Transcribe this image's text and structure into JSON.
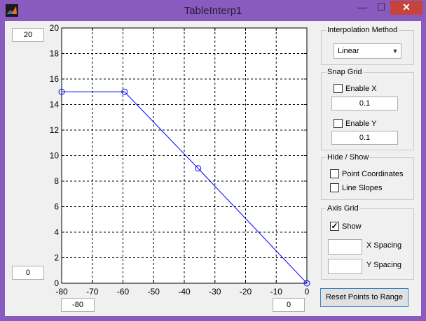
{
  "window": {
    "title": "TableInterp1"
  },
  "titlebar": {
    "minimize_glyph": "—",
    "maximize_glyph": "☐",
    "close_glyph": "✕"
  },
  "axis": {
    "y_max_field": "20",
    "y_min_field": "0",
    "x_min_field": "-80",
    "x_max_field": "0"
  },
  "chart_data": {
    "type": "line",
    "x": [
      -80,
      -59.5,
      -35.5,
      0
    ],
    "y": [
      15,
      15,
      9,
      0
    ],
    "xlim": [
      -80,
      0
    ],
    "ylim": [
      0,
      20
    ],
    "xticks": [
      "-80",
      "-70",
      "-60",
      "-50",
      "-40",
      "-30",
      "-20",
      "-10",
      "0"
    ],
    "yticks": [
      "0",
      "2",
      "4",
      "6",
      "8",
      "10",
      "12",
      "14",
      "16",
      "18",
      "20"
    ],
    "grid": true,
    "line_color": "#0000ff",
    "marker": "circle"
  },
  "interpolation": {
    "title": "Interpolation Method",
    "selected": "Linear"
  },
  "snap_grid": {
    "title": "Snap Grid",
    "enable_x_label": "Enable X",
    "enable_x_checked": false,
    "x_value": "0.1",
    "enable_y_label": "Enable Y",
    "enable_y_checked": false,
    "y_value": "0.1"
  },
  "hide_show": {
    "title": "Hide / Show",
    "point_coordinates_label": "Point Coordinates",
    "point_coordinates_checked": false,
    "line_slopes_label": "Line Slopes",
    "line_slopes_checked": false
  },
  "axis_grid": {
    "title": "Axis Grid",
    "show_label": "Show",
    "show_checked": true,
    "x_spacing_label": "X Spacing",
    "x_spacing_value": "",
    "y_spacing_label": "Y Spacing",
    "y_spacing_value": ""
  },
  "reset_button": {
    "label": "Reset Points to Range"
  },
  "colors": {
    "window_frame": "#8a5bbf",
    "client_bg": "#f0f0f0",
    "close_button": "#c7423a",
    "plot_line": "#0000ff"
  }
}
